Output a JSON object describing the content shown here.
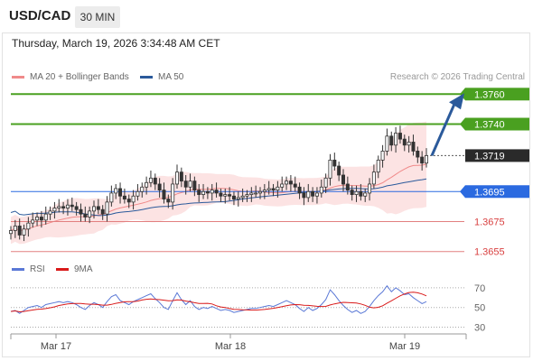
{
  "header": {
    "pair": "USD/CAD",
    "timeframe": "30 MIN"
  },
  "datetime": "Thursday, March 19, 2026 3:34:48 AM CET",
  "legend": {
    "bollinger": {
      "label": "MA 20 + Bollinger Bands",
      "color": "#f08a8a"
    },
    "ma50": {
      "label": "MA 50",
      "color": "#2b5a9b"
    },
    "rsi": {
      "label": "RSI",
      "color": "#5a78d6"
    },
    "ma9": {
      "label": "9MA",
      "color": "#d91a1a"
    }
  },
  "copyright": "Research © 2026 Trading Central",
  "price_levels": [
    {
      "label": "1.3760",
      "value": 1.376,
      "kind": "resistance",
      "color": "#4aa020"
    },
    {
      "label": "1.3740",
      "value": 1.374,
      "kind": "resistance",
      "color": "#4aa020"
    },
    {
      "label": "1.3719",
      "value": 1.3719,
      "kind": "current",
      "color": "#2a2a2a"
    },
    {
      "label": "1.3695",
      "value": 1.3695,
      "kind": "pivot",
      "color": "#2b6ae0"
    },
    {
      "label": "1.3675",
      "value": 1.3675,
      "kind": "support",
      "color": "#d94040"
    },
    {
      "label": "1.3655",
      "value": 1.3655,
      "kind": "support",
      "color": "#d94040"
    }
  ],
  "rsi_levels": [
    "70",
    "50",
    "30"
  ],
  "x_labels": [
    "Mar 17",
    "Mar 18",
    "Mar 19"
  ],
  "chart_data": {
    "type": "candlestick",
    "closes": [
      1.3669,
      1.3672,
      1.3666,
      1.367,
      1.3674,
      1.3676,
      1.3678,
      1.3676,
      1.368,
      1.3682,
      1.3684,
      1.3685,
      1.3684,
      1.3686,
      1.3685,
      1.3683,
      1.368,
      1.3678,
      1.3682,
      1.3685,
      1.3683,
      1.368,
      1.3688,
      1.3694,
      1.3697,
      1.3692,
      1.369,
      1.3688,
      1.3692,
      1.3695,
      1.3698,
      1.3701,
      1.3704,
      1.37,
      1.3696,
      1.369,
      1.3688,
      1.37,
      1.3708,
      1.3702,
      1.3698,
      1.3702,
      1.3696,
      1.3693,
      1.3695,
      1.3694,
      1.3696,
      1.3694,
      1.3692,
      1.3693,
      1.3692,
      1.369,
      1.3691,
      1.3692,
      1.3693,
      1.3694,
      1.3694,
      1.3695,
      1.3696,
      1.3697,
      1.3696,
      1.3698,
      1.37,
      1.3702,
      1.37,
      1.3698,
      1.3694,
      1.3691,
      1.3695,
      1.3692,
      1.3694,
      1.3698,
      1.3704,
      1.3716,
      1.3712,
      1.3706,
      1.37,
      1.3696,
      1.3693,
      1.3695,
      1.3692,
      1.3694,
      1.37,
      1.3708,
      1.3716,
      1.3722,
      1.3732,
      1.3726,
      1.3734,
      1.373,
      1.3726,
      1.3728,
      1.3722,
      1.3718,
      1.3714,
      1.3719
    ],
    "rsi": [
      46,
      47,
      44,
      47,
      50,
      51,
      52,
      50,
      53,
      54,
      55,
      56,
      55,
      56,
      55,
      53,
      50,
      48,
      52,
      55,
      53,
      50,
      56,
      61,
      63,
      57,
      55,
      53,
      56,
      58,
      60,
      62,
      64,
      59,
      55,
      50,
      48,
      57,
      65,
      58,
      53,
      57,
      51,
      48,
      50,
      49,
      51,
      49,
      47,
      48,
      47,
      45,
      46,
      47,
      48,
      49,
      49,
      50,
      51,
      52,
      51,
      53,
      55,
      57,
      55,
      53,
      49,
      46,
      50,
      47,
      49,
      53,
      58,
      68,
      63,
      57,
      52,
      48,
      45,
      47,
      44,
      46,
      51,
      57,
      62,
      66,
      72,
      66,
      70,
      67,
      63,
      64,
      60,
      57,
      54,
      56
    ],
    "ylim": [
      1.365,
      1.3765
    ],
    "rsi_ylim": [
      25,
      80
    ]
  }
}
